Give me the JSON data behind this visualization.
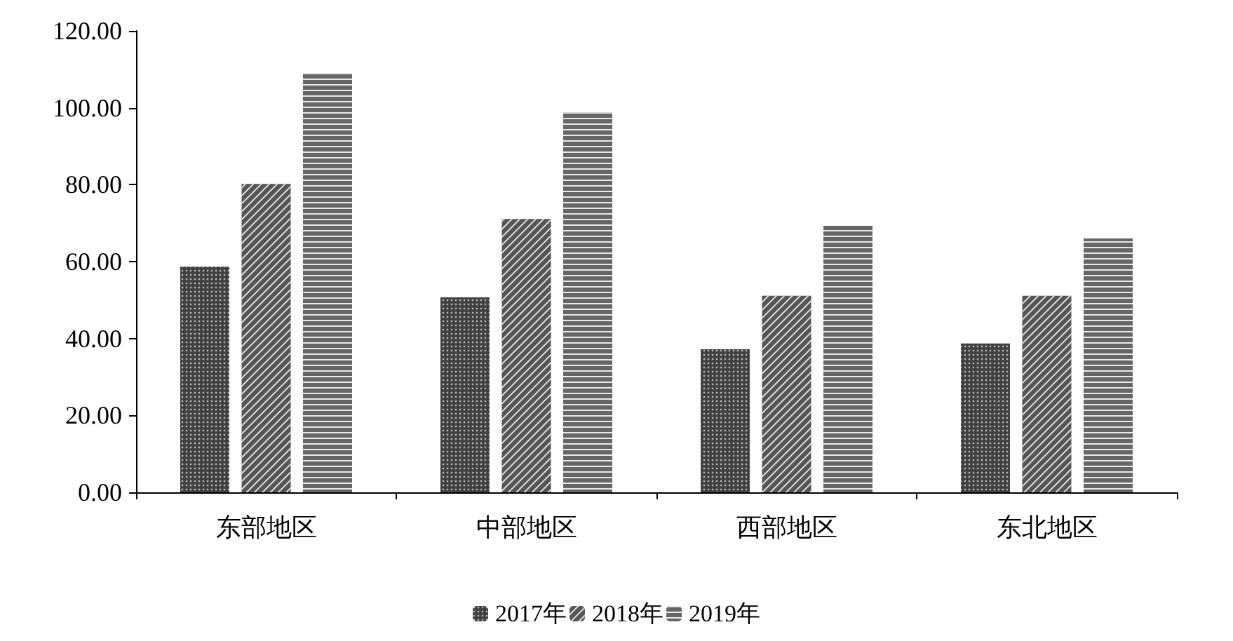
{
  "chart_data": {
    "type": "bar",
    "categories": [
      "东部地区",
      "中部地区",
      "西部地区",
      "东北地区"
    ],
    "series": [
      {
        "name": "2017年",
        "color": "#404040",
        "values": [
          58.7,
          50.7,
          37.2,
          38.7
        ]
      },
      {
        "name": "2018年",
        "color": "#555555",
        "values": [
          80.2,
          71.1,
          51.1,
          51.1
        ]
      },
      {
        "name": "2019年",
        "color": "#666666",
        "values": [
          109,
          98.8,
          69.3,
          66.0
        ]
      }
    ],
    "ylim": [
      0,
      120
    ],
    "yticks": [
      {
        "value": 0,
        "label": "0.00"
      },
      {
        "value": 20,
        "label": "20.00"
      },
      {
        "value": 40,
        "label": "40.00"
      },
      {
        "value": 60,
        "label": "60.00"
      },
      {
        "value": 80,
        "label": "80.00"
      },
      {
        "value": 100,
        "label": "100.00"
      },
      {
        "value": 120,
        "label": "120.00"
      }
    ],
    "grid": false,
    "legend": "bottom"
  }
}
